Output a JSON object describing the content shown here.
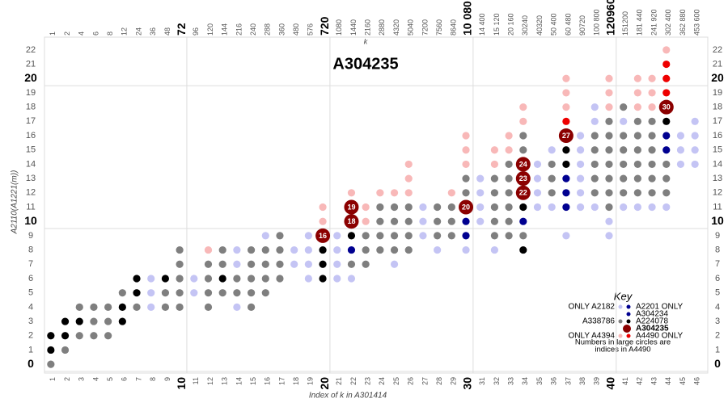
{
  "chart_data": {
    "type": "scatter",
    "title": "A304235",
    "x_label": "Index of k in A301414",
    "y_label": "A2110(A1221(m))",
    "top_label": "k",
    "xlim": [
      0.5,
      46.5
    ],
    "ylim": [
      -0.5,
      22.5
    ],
    "xticks": [
      1,
      2,
      3,
      4,
      5,
      6,
      7,
      8,
      9,
      10,
      11,
      12,
      13,
      14,
      15,
      16,
      17,
      18,
      19,
      20,
      21,
      22,
      23,
      24,
      25,
      26,
      27,
      28,
      29,
      30,
      31,
      32,
      33,
      34,
      35,
      36,
      37,
      38,
      39,
      40,
      41,
      42,
      43,
      44,
      45,
      46
    ],
    "top_ticks": [
      1,
      2,
      4,
      6,
      8,
      12,
      24,
      36,
      48,
      72,
      96,
      120,
      144,
      216,
      240,
      288,
      360,
      480,
      576,
      720,
      1080,
      1440,
      2160,
      2880,
      4320,
      5040,
      7200,
      7560,
      8640,
      {
        "value": 10080,
        "label": "10 080"
      },
      {
        "value": 14400,
        "label": "14 400"
      },
      {
        "value": 15120,
        "label": "15 120"
      },
      {
        "value": 20160,
        "label": "20 160"
      },
      30240,
      40320,
      {
        "value": 50400,
        "label": "50 400"
      },
      {
        "value": 60480,
        "label": "60 480"
      },
      90720,
      {
        "value": 100800,
        "label": "100 800"
      },
      120960,
      151200,
      {
        "value": 181440,
        "label": "181 440"
      },
      {
        "value": 241920,
        "label": "241 920"
      },
      {
        "value": 302400,
        "label": "302 400"
      },
      {
        "value": 362880,
        "label": "362 880"
      },
      {
        "value": 453600,
        "label": "453 600"
      }
    ],
    "yticks": [
      0,
      1,
      2,
      3,
      4,
      5,
      6,
      7,
      8,
      9,
      10,
      11,
      12,
      13,
      14,
      15,
      16,
      17,
      18,
      19,
      20,
      21,
      22
    ],
    "legend_title": "Key",
    "key_note": [
      "Numbers in large circles are",
      "indices in A4490"
    ],
    "series": [
      {
        "name": "ONLY A2182",
        "color": "#c4c4f4",
        "x": [
          8,
          8,
          8,
          11,
          11,
          14,
          14,
          14,
          16,
          18,
          18,
          19,
          19,
          19,
          19,
          21,
          21,
          21,
          21,
          22,
          25,
          27,
          27,
          27,
          28,
          30,
          31,
          31,
          31,
          31,
          32,
          35,
          35,
          35,
          35,
          36,
          36,
          37,
          38,
          38,
          38,
          38,
          38,
          38,
          39,
          39,
          39,
          40,
          40,
          41,
          41,
          42,
          43,
          44,
          45,
          45,
          45,
          46,
          46,
          46,
          46
        ],
        "values": [
          4,
          5,
          6,
          5,
          6,
          4,
          7,
          8,
          9,
          7,
          8,
          6,
          7,
          8,
          9,
          6,
          7,
          8,
          9,
          6,
          7,
          9,
          10,
          11,
          8,
          8,
          10,
          11,
          12,
          13,
          8,
          11,
          12,
          13,
          14,
          11,
          15,
          9,
          11,
          12,
          13,
          14,
          15,
          16,
          11,
          17,
          18,
          9,
          10,
          11,
          17,
          11,
          11,
          11,
          14,
          15,
          16,
          14,
          15,
          16,
          17
        ]
      },
      {
        "name": "A2201 ONLY",
        "color": "#000090",
        "x": [
          22,
          30,
          30,
          34,
          37,
          37,
          37,
          44,
          44
        ],
        "values": [
          8,
          9,
          10,
          10,
          11,
          12,
          13,
          15,
          16
        ]
      },
      {
        "name": "A304234",
        "color": "#000090",
        "x": [],
        "values": []
      },
      {
        "name": "A338786",
        "color": "#7f7f7f",
        "x": [
          1,
          2,
          3,
          3,
          4,
          4,
          4,
          5,
          5,
          5,
          6,
          7,
          9,
          9,
          10,
          10,
          10,
          10,
          10,
          12,
          12,
          12,
          12,
          13,
          13,
          13,
          14,
          14,
          15,
          15,
          15,
          15,
          15,
          16,
          16,
          16,
          16,
          17,
          17,
          17,
          17,
          22,
          23,
          23,
          23,
          24,
          24,
          24,
          24,
          25,
          25,
          25,
          25,
          26,
          26,
          26,
          26,
          28,
          28,
          28,
          29,
          29,
          29,
          30,
          30,
          32,
          32,
          32,
          32,
          32,
          33,
          33,
          33,
          33,
          33,
          33,
          34,
          34,
          34,
          36,
          36,
          36,
          39,
          39,
          39,
          39,
          39,
          40,
          40,
          40,
          40,
          40,
          40,
          40,
          41,
          41,
          41,
          41,
          41,
          41,
          42,
          42,
          42,
          42,
          42,
          42,
          43,
          43,
          43,
          43,
          43,
          43,
          44,
          44,
          44
        ],
        "values": [
          0,
          1,
          2,
          4,
          2,
          3,
          4,
          2,
          3,
          4,
          5,
          4,
          4,
          5,
          4,
          5,
          6,
          7,
          8,
          4,
          5,
          6,
          7,
          5,
          7,
          8,
          5,
          6,
          4,
          5,
          6,
          7,
          8,
          5,
          6,
          7,
          8,
          6,
          7,
          8,
          9,
          7,
          7,
          8,
          9,
          8,
          9,
          10,
          11,
          8,
          9,
          10,
          11,
          8,
          9,
          10,
          11,
          9,
          10,
          11,
          9,
          10,
          11,
          12,
          13,
          9,
          10,
          11,
          12,
          13,
          9,
          10,
          11,
          12,
          13,
          14,
          9,
          15,
          16,
          12,
          13,
          14,
          12,
          13,
          14,
          15,
          16,
          11,
          12,
          13,
          14,
          15,
          16,
          17,
          12,
          13,
          14,
          15,
          16,
          18,
          12,
          13,
          14,
          15,
          16,
          17,
          12,
          13,
          14,
          15,
          16,
          17,
          12,
          13,
          14
        ]
      },
      {
        "name": "A224078",
        "color": "#000000",
        "x": [
          1,
          1,
          2,
          2,
          3,
          6,
          6,
          7,
          7,
          9,
          13,
          20,
          20,
          20,
          22,
          34,
          34,
          37,
          37,
          44
        ],
        "values": [
          1,
          2,
          2,
          3,
          3,
          3,
          4,
          5,
          6,
          6,
          6,
          6,
          7,
          8,
          9,
          8,
          11,
          14,
          15,
          17
        ]
      },
      {
        "name": "A304235",
        "color": "#8b0000",
        "x": [
          20,
          22,
          22,
          30,
          34,
          34,
          34,
          37,
          44
        ],
        "values": [
          9,
          10,
          11,
          11,
          12,
          13,
          14,
          16,
          18
        ],
        "point_labels": [
          16,
          18,
          19,
          20,
          22,
          23,
          24,
          27,
          30
        ]
      },
      {
        "name": "ONLY A4394",
        "color": "#f8b8b8",
        "x": [
          12,
          20,
          20,
          22,
          23,
          23,
          24,
          25,
          26,
          26,
          26,
          29,
          30,
          30,
          30,
          32,
          32,
          33,
          33,
          34,
          34,
          37,
          37,
          37,
          40,
          40,
          40,
          42,
          42,
          42,
          43,
          43,
          43,
          44
        ],
        "values": [
          8,
          10,
          11,
          12,
          10,
          11,
          12,
          12,
          12,
          13,
          14,
          12,
          14,
          15,
          16,
          14,
          15,
          15,
          16,
          17,
          18,
          18,
          19,
          20,
          18,
          19,
          20,
          18,
          19,
          20,
          18,
          19,
          20,
          22
        ]
      },
      {
        "name": "A4490 ONLY",
        "color": "#ee0000",
        "x": [
          37,
          44,
          44,
          44
        ],
        "values": [
          17,
          19,
          20,
          21
        ]
      }
    ]
  }
}
